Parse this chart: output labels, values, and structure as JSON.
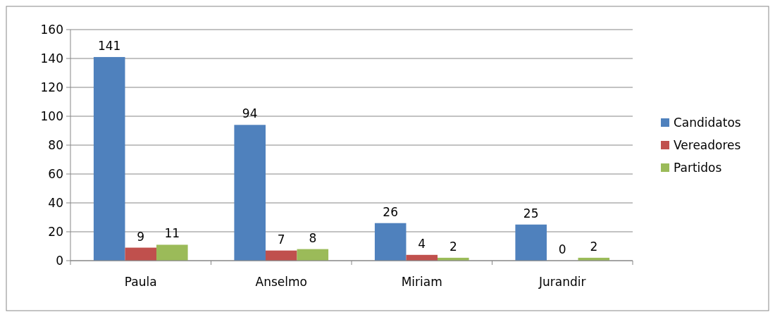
{
  "chart_data": {
    "type": "bar",
    "categories": [
      "Paula",
      "Anselmo",
      "Miriam",
      "Jurandir"
    ],
    "series": [
      {
        "name": "Candidatos",
        "color": "#4f81bd",
        "values": [
          141,
          94,
          26,
          25
        ]
      },
      {
        "name": "Vereadores",
        "color": "#c0504d",
        "values": [
          9,
          7,
          4,
          0
        ]
      },
      {
        "name": "Partidos",
        "color": "#9bbb59",
        "values": [
          11,
          8,
          2,
          2
        ]
      }
    ],
    "ylim": [
      0,
      160
    ],
    "yticks": [
      0,
      20,
      40,
      60,
      80,
      100,
      120,
      140,
      160
    ],
    "grid": "y",
    "legend": "right",
    "data_labels": true
  }
}
